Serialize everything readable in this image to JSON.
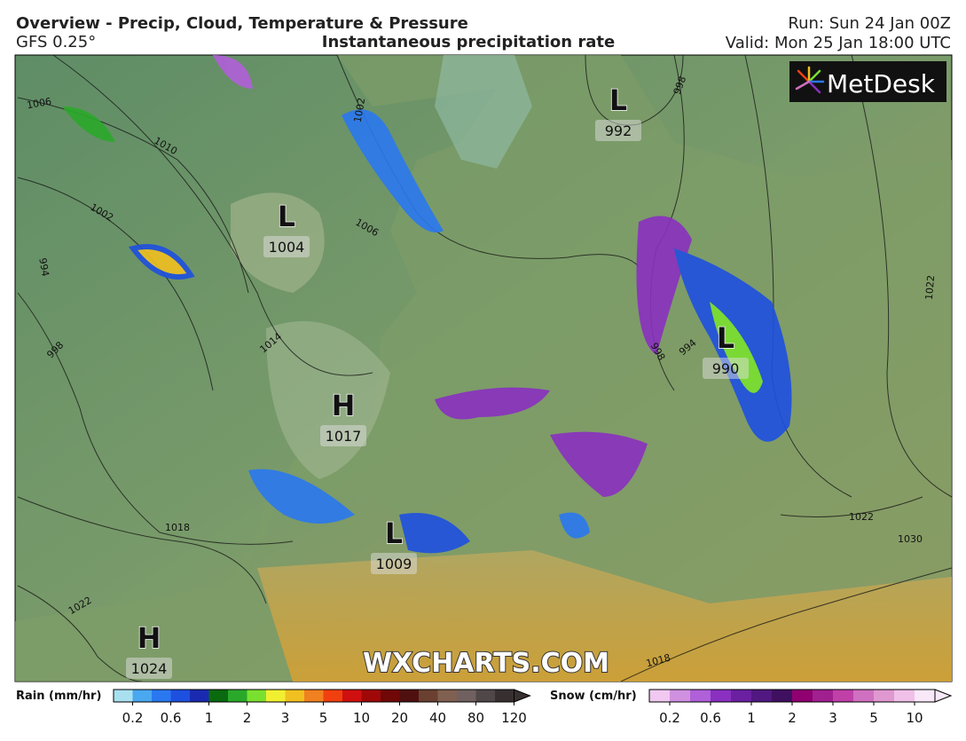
{
  "header": {
    "title": "Overview - Precip, Cloud, Temperature & Pressure",
    "model": "GFS 0.25°",
    "subtitle": "Instantaneous precipitation rate",
    "run": "Run: Sun 24 Jan 00Z",
    "valid": "Valid: Mon 25 Jan 18:00 UTC"
  },
  "logo": "MetDesk",
  "watermark": "WXCHARTS.COM",
  "pressure_centers": [
    {
      "type": "L",
      "value": 992
    },
    {
      "type": "L",
      "value": 1004
    },
    {
      "type": "L",
      "value": 990
    },
    {
      "type": "H",
      "value": 1017
    },
    {
      "type": "L",
      "value": 1009
    },
    {
      "type": "H",
      "value": 1024
    }
  ],
  "isobar_labels": [
    1006,
    1010,
    1002,
    994,
    998,
    1014,
    1006,
    1002,
    998,
    998,
    994,
    1022,
    1018,
    1022,
    1022,
    1030,
    1018
  ],
  "legend": {
    "rain": {
      "title": "Rain (mm/hr)",
      "ticks": [
        0.2,
        0.6,
        1,
        2,
        3,
        5,
        10,
        20,
        40,
        80,
        120
      ],
      "colors": [
        "#a8e0f0",
        "#4aa8f0",
        "#2a78f0",
        "#1e50e0",
        "#1a2ab0",
        "#0a6a10",
        "#2aa82a",
        "#7ae030",
        "#f0f030",
        "#f0c020",
        "#f08020",
        "#f04010",
        "#d01010",
        "#a00808",
        "#700808",
        "#501010",
        "#6a4030",
        "#806050",
        "#706060",
        "#504848",
        "#383030"
      ]
    },
    "snow": {
      "title": "Snow (cm/hr)",
      "ticks": [
        0.2,
        0.6,
        1,
        2,
        3,
        5,
        10
      ],
      "colors": [
        "#f0c8f0",
        "#d090e0",
        "#b060d8",
        "#8a30c0",
        "#6a20a0",
        "#501880",
        "#401060",
        "#900070",
        "#a02090",
        "#c040a8",
        "#d070c0",
        "#e098d0",
        "#f0c0e8",
        "#f8e8f8"
      ]
    }
  }
}
